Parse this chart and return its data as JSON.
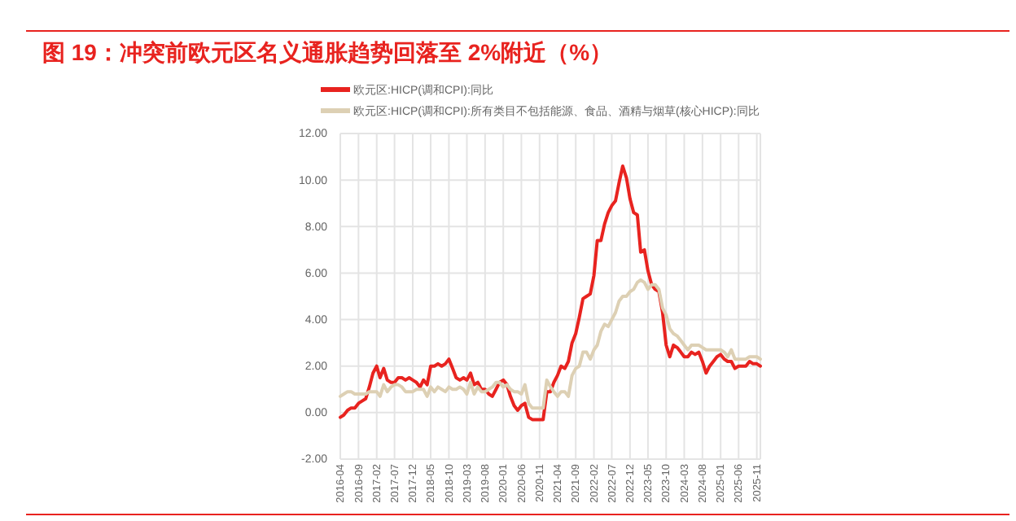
{
  "chart_data": {
    "type": "line",
    "title": "图 19：冲突前欧元区名义通胀趋势回落至 2%附近（%）",
    "x": [
      "2016-04",
      "2016-05",
      "2016-06",
      "2016-07",
      "2016-08",
      "2016-09",
      "2016-10",
      "2016-11",
      "2016-12",
      "2017-01",
      "2017-02",
      "2017-03",
      "2017-04",
      "2017-05",
      "2017-06",
      "2017-07",
      "2017-08",
      "2017-09",
      "2017-10",
      "2017-11",
      "2017-12",
      "2018-01",
      "2018-02",
      "2018-03",
      "2018-04",
      "2018-05",
      "2018-06",
      "2018-07",
      "2018-08",
      "2018-09",
      "2018-10",
      "2018-11",
      "2018-12",
      "2019-01",
      "2019-02",
      "2019-03",
      "2019-04",
      "2019-05",
      "2019-06",
      "2019-07",
      "2019-08",
      "2019-09",
      "2019-10",
      "2019-11",
      "2019-12",
      "2020-01",
      "2020-02",
      "2020-03",
      "2020-04",
      "2020-05",
      "2020-06",
      "2020-07",
      "2020-08",
      "2020-09",
      "2020-10",
      "2020-11",
      "2020-12",
      "2021-01",
      "2021-02",
      "2021-03",
      "2021-04",
      "2021-05",
      "2021-06",
      "2021-07",
      "2021-08",
      "2021-09",
      "2021-10",
      "2021-11",
      "2021-12",
      "2022-01",
      "2022-02",
      "2022-03",
      "2022-04",
      "2022-05",
      "2022-06",
      "2022-07",
      "2022-08",
      "2022-09",
      "2022-10",
      "2022-11",
      "2022-12",
      "2023-01",
      "2023-02",
      "2023-03",
      "2023-04",
      "2023-05",
      "2023-06",
      "2023-07",
      "2023-08",
      "2023-09",
      "2023-10",
      "2023-11",
      "2023-12",
      "2024-01",
      "2024-02",
      "2024-03",
      "2024-04",
      "2024-05",
      "2024-06",
      "2024-07",
      "2024-08",
      "2024-09",
      "2024-10",
      "2024-11",
      "2024-12",
      "2025-01",
      "2025-02",
      "2025-03",
      "2025-04",
      "2025-05",
      "2025-06",
      "2025-07",
      "2025-08",
      "2025-09",
      "2025-10",
      "2025-11",
      "2025-12"
    ],
    "series": [
      {
        "name": "欧元区:HICP(调和CPI):同比",
        "color": "#e8231f",
        "values": [
          -0.2,
          -0.1,
          0.1,
          0.2,
          0.2,
          0.4,
          0.5,
          0.6,
          1.1,
          1.7,
          2.0,
          1.5,
          1.9,
          1.4,
          1.3,
          1.3,
          1.5,
          1.5,
          1.4,
          1.5,
          1.4,
          1.3,
          1.1,
          1.4,
          1.2,
          2.0,
          2.0,
          2.1,
          2.0,
          2.1,
          2.3,
          1.9,
          1.5,
          1.4,
          1.5,
          1.4,
          1.7,
          1.2,
          1.3,
          1.0,
          1.0,
          0.8,
          0.7,
          1.0,
          1.3,
          1.4,
          1.2,
          0.7,
          0.3,
          0.1,
          0.3,
          0.4,
          -0.2,
          -0.3,
          -0.3,
          -0.3,
          -0.3,
          0.9,
          0.9,
          1.3,
          1.6,
          2.0,
          1.9,
          2.2,
          3.0,
          3.4,
          4.1,
          4.9,
          5.0,
          5.1,
          5.9,
          7.4,
          7.4,
          8.1,
          8.6,
          8.9,
          9.1,
          9.9,
          10.6,
          10.1,
          9.2,
          8.6,
          8.5,
          6.9,
          7.0,
          6.1,
          5.5,
          5.3,
          5.2,
          4.3,
          2.9,
          2.4,
          2.9,
          2.8,
          2.6,
          2.4,
          2.4,
          2.6,
          2.5,
          2.6,
          2.2,
          1.7,
          2.0,
          2.2,
          2.4,
          2.5,
          2.3,
          2.2,
          2.2,
          1.9,
          2.0,
          2.0,
          2.0,
          2.2,
          2.1,
          2.1,
          2.0
        ]
      },
      {
        "name": "欧元区:HICP(调和CPI):所有类目不包括能源、食品、酒精与烟草(核心HICP):同比",
        "color": "#ddd0b4",
        "values": [
          0.7,
          0.8,
          0.9,
          0.9,
          0.8,
          0.8,
          0.8,
          0.8,
          0.9,
          0.9,
          0.9,
          0.7,
          1.2,
          0.9,
          1.1,
          1.2,
          1.2,
          1.1,
          0.9,
          0.9,
          0.9,
          1.0,
          1.0,
          1.0,
          0.7,
          1.1,
          0.9,
          1.1,
          1.0,
          0.9,
          1.1,
          1.0,
          1.0,
          1.1,
          1.0,
          0.8,
          1.3,
          0.8,
          1.1,
          0.9,
          0.9,
          1.0,
          1.1,
          1.3,
          1.3,
          1.1,
          1.2,
          1.0,
          0.9,
          0.9,
          0.8,
          1.2,
          0.4,
          0.2,
          0.2,
          0.2,
          0.2,
          1.4,
          1.1,
          0.9,
          0.7,
          0.9,
          0.9,
          0.7,
          1.6,
          1.9,
          2.0,
          2.6,
          2.6,
          2.3,
          2.7,
          2.9,
          3.5,
          3.8,
          3.7,
          4.0,
          4.3,
          4.8,
          5.0,
          5.0,
          5.2,
          5.3,
          5.6,
          5.7,
          5.6,
          5.3,
          5.5,
          5.5,
          5.3,
          4.5,
          4.2,
          3.6,
          3.4,
          3.3,
          3.1,
          2.9,
          2.7,
          2.9,
          2.9,
          2.9,
          2.8,
          2.7,
          2.7,
          2.7,
          2.7,
          2.7,
          2.6,
          2.4,
          2.7,
          2.3,
          2.3,
          2.3,
          2.3,
          2.4,
          2.4,
          2.4,
          2.3
        ]
      }
    ],
    "xlim": [
      "2016-04",
      "2025-12"
    ],
    "xticks": [
      "2016-04",
      "2016-09",
      "2017-02",
      "2017-07",
      "2017-12",
      "2018-05",
      "2018-10",
      "2019-03",
      "2019-08",
      "2020-01",
      "2020-06",
      "2020-11",
      "2021-04",
      "2021-09",
      "2022-02",
      "2022-07",
      "2022-12",
      "2023-05",
      "2023-10",
      "2024-03",
      "2024-08",
      "2025-01",
      "2025-06",
      "2025-11"
    ],
    "ylim": [
      -2,
      12
    ],
    "yticks": [
      {
        "value": -2,
        "label": "-2.00"
      },
      {
        "value": 0,
        "label": "0.00"
      },
      {
        "value": 2,
        "label": "2.00"
      },
      {
        "value": 4,
        "label": "4.00"
      },
      {
        "value": 6,
        "label": "6.00"
      },
      {
        "value": 8,
        "label": "8.00"
      },
      {
        "value": 10,
        "label": "10.00"
      },
      {
        "value": 12,
        "label": "12.00"
      }
    ],
    "grid": true,
    "legend": "top",
    "line_style": "solid",
    "marker": "none"
  }
}
